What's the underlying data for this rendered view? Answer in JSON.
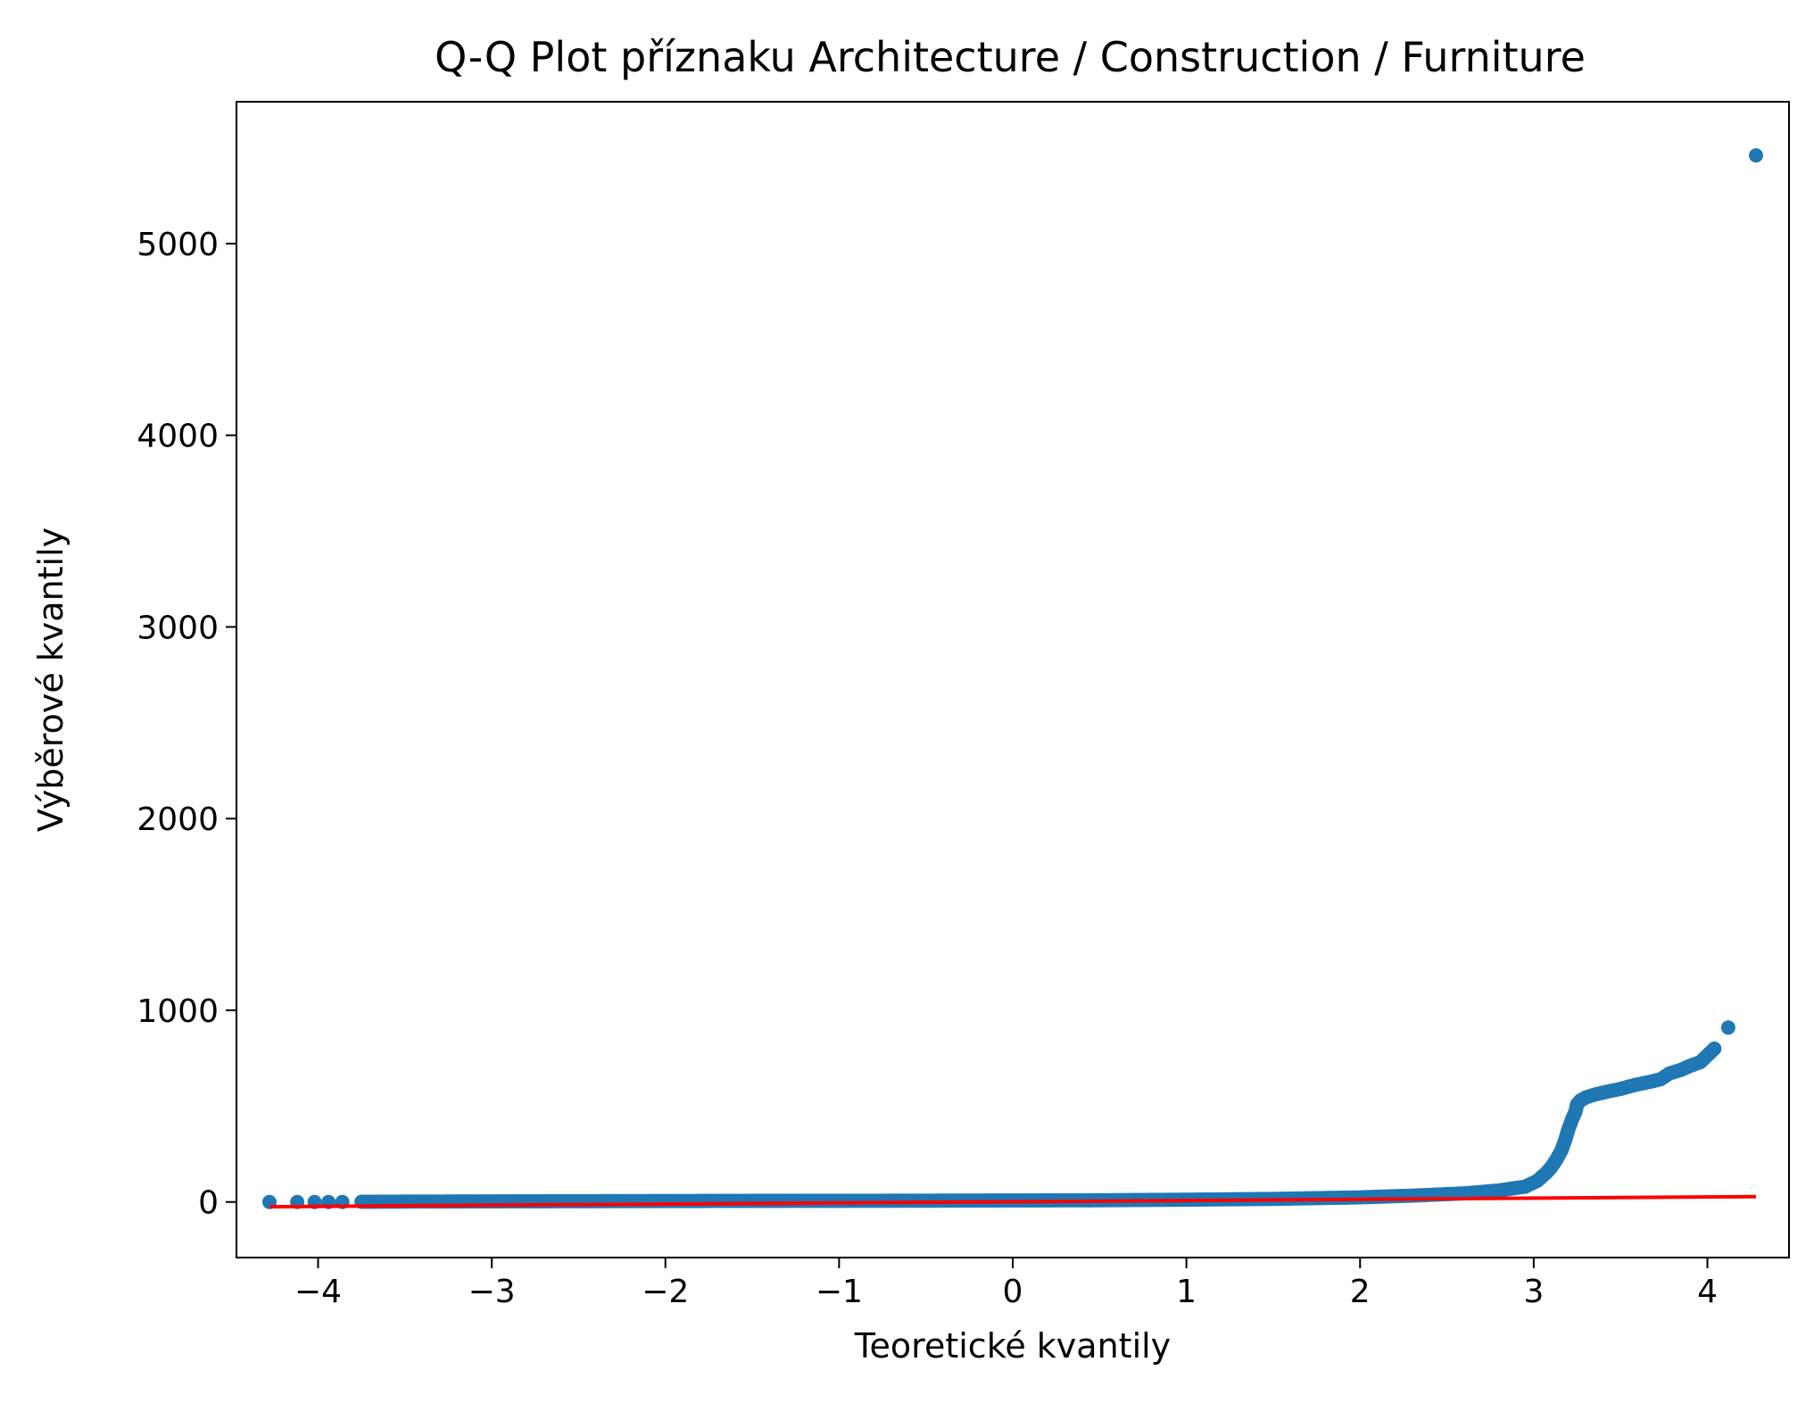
{
  "chart_data": {
    "type": "scatter",
    "title": "Q-Q Plot příznaku Architecture / Construction / Furniture",
    "xlabel": "Teoretické kvantily",
    "ylabel": "Výběrové kvantily",
    "xlim": [
      -4.47,
      4.47
    ],
    "ylim": [
      -290,
      5740
    ],
    "x_ticks": [
      -4,
      -3,
      -2,
      -1,
      0,
      1,
      2,
      3,
      4
    ],
    "x_tick_labels": [
      "−4",
      "−3",
      "−2",
      "−1",
      "0",
      "1",
      "2",
      "3",
      "4"
    ],
    "y_ticks": [
      0,
      1000,
      2000,
      3000,
      4000,
      5000
    ],
    "y_tick_labels": [
      "0",
      "1000",
      "2000",
      "3000",
      "4000",
      "5000"
    ],
    "grid": false,
    "series": [
      {
        "kind": "points",
        "color": "#1f77b4",
        "x": [
          -4.28,
          -4.12,
          -4.02,
          -3.94,
          -3.86,
          -3.75,
          -3.5,
          -3.0,
          -2.5,
          -2.0,
          -1.5,
          -1.0,
          -0.5,
          0.0,
          0.5,
          1.0,
          1.5,
          2.0,
          2.3,
          2.6,
          2.8,
          2.95,
          3.02,
          3.07,
          3.1,
          3.13,
          3.16,
          3.18,
          3.2,
          3.22,
          3.24,
          3.25,
          3.27,
          3.3,
          3.35,
          3.42,
          3.5,
          3.58,
          3.66,
          3.73,
          3.78,
          3.85,
          3.9,
          3.96,
          4.04,
          4.12,
          4.28
        ],
        "y": [
          0,
          0,
          0,
          0,
          0,
          1,
          2,
          3,
          4,
          5,
          6,
          6,
          7,
          8,
          9,
          12,
          16,
          24,
          33,
          45,
          60,
          80,
          110,
          150,
          180,
          220,
          270,
          320,
          380,
          430,
          470,
          510,
          530,
          545,
          560,
          575,
          590,
          610,
          625,
          640,
          670,
          690,
          710,
          730,
          800,
          910,
          5460
        ]
      },
      {
        "kind": "fit_line",
        "color": "#ff0000",
        "x": [
          -4.28,
          4.28
        ],
        "y": [
          -25,
          28
        ]
      }
    ]
  }
}
